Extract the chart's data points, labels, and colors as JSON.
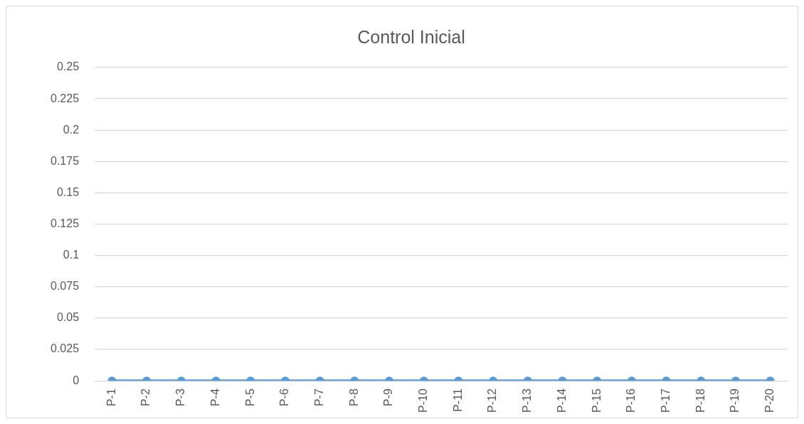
{
  "chart_data": {
    "type": "line",
    "title": "Control Inicial",
    "categories": [
      "P-1",
      "P-2",
      "P-3",
      "P-4",
      "P-5",
      "P-6",
      "P-7",
      "P-8",
      "P-9",
      "P-10",
      "P-11",
      "P-12",
      "P-13",
      "P-14",
      "P-15",
      "P-16",
      "P-17",
      "P-18",
      "P-19",
      "P-20"
    ],
    "series": [
      {
        "color": "#5b9bd5",
        "values": [
          0,
          0,
          0,
          0,
          0,
          0,
          0,
          0,
          0,
          0,
          0,
          0,
          0,
          0,
          0,
          0,
          0,
          0,
          0,
          0
        ]
      }
    ],
    "ylim": [
      0,
      0.25
    ],
    "yticks": [
      0,
      0.025,
      0.05,
      0.075,
      0.1,
      0.125,
      0.15,
      0.175,
      0.2,
      0.225,
      0.25
    ],
    "grid": "y",
    "legend": false,
    "marker": "circle",
    "line_style": "solid"
  }
}
